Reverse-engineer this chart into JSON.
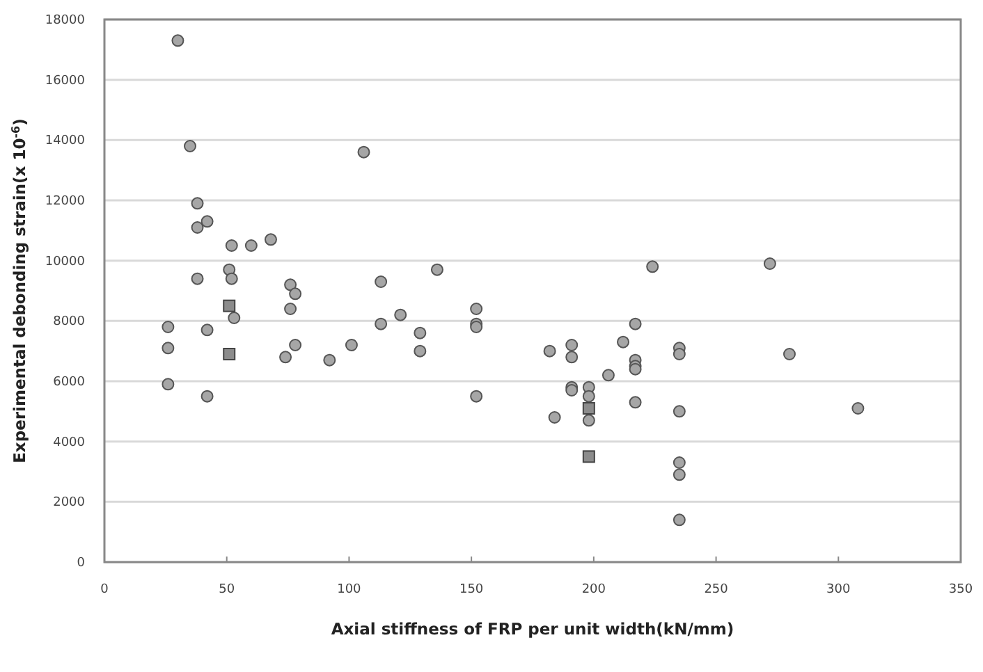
{
  "chart_data": {
    "type": "scatter",
    "xlabel": "Axial stiffness of FRP per unit width(kN/mm)",
    "ylabel": "Experimental debonding strain(x 10$^{-6}$)",
    "xlim": [
      0,
      350
    ],
    "xticks": [
      0,
      50,
      100,
      150,
      200,
      250,
      300,
      350
    ],
    "ylim": [
      0,
      18000
    ],
    "yticks": [
      0,
      2000,
      4000,
      6000,
      8000,
      10000,
      12000,
      14000,
      16000,
      18000
    ],
    "grid": "y",
    "series": [
      {
        "color": "#a6a6a6",
        "marker": "circle",
        "x": [
          30,
          35,
          38,
          38,
          42,
          38,
          52,
          60,
          68,
          51,
          52,
          53,
          26,
          26,
          26,
          42,
          42,
          76,
          78,
          76,
          78,
          74,
          92,
          101,
          106,
          113,
          113,
          121,
          129,
          129,
          136,
          152,
          152,
          152,
          152,
          182,
          184,
          191,
          191,
          191,
          191,
          198,
          198,
          198,
          206,
          212,
          217,
          217,
          217,
          217,
          217,
          224,
          235,
          235,
          235,
          235,
          235,
          235,
          272,
          280,
          308
        ],
        "values": [
          17300,
          13800,
          11900,
          11100,
          11300,
          9400,
          10500,
          10500,
          10700,
          9700,
          9400,
          8100,
          7800,
          7100,
          5900,
          7700,
          5500,
          9200,
          8900,
          8400,
          7200,
          6800,
          6700,
          7200,
          13600,
          9300,
          7900,
          8200,
          7600,
          7000,
          9700,
          8400,
          7900,
          7800,
          5500,
          7000,
          4800,
          7200,
          6800,
          5800,
          5700,
          5800,
          5500,
          4700,
          6200,
          7300,
          7900,
          6700,
          6500,
          6400,
          5300,
          9800,
          7100,
          6900,
          5000,
          3300,
          2900,
          1400,
          9900,
          6900,
          5100
        ]
      },
      {
        "color": "#8c8c8c",
        "marker": "square",
        "x": [
          51,
          51,
          198,
          198
        ],
        "values": [
          8500,
          6900,
          5100,
          3500
        ]
      }
    ]
  }
}
